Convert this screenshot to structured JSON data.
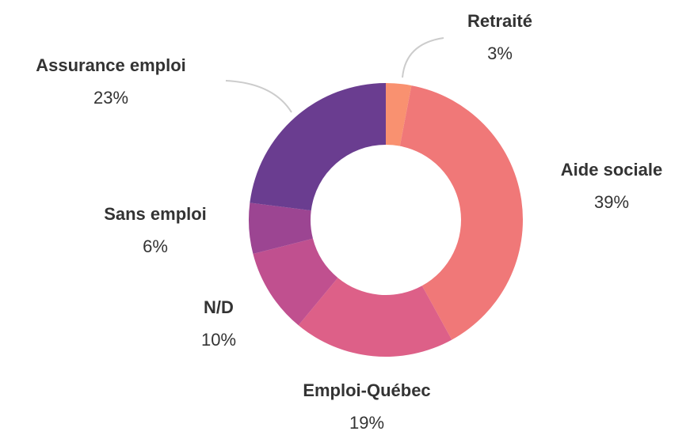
{
  "chart_data": {
    "type": "donut",
    "categories": [
      "Retraité",
      "Aide sociale",
      "Emploi-Québec",
      "N/D",
      "Sans emploi",
      "Assurance emploi"
    ],
    "values": [
      3,
      39,
      19,
      10,
      6,
      23
    ],
    "value_labels": [
      "3%",
      "39%",
      "19%",
      "10%",
      "6%",
      "23%"
    ],
    "colors": [
      "#f99170",
      "#f07878",
      "#dd6088",
      "#c0508f",
      "#9c4592",
      "#6a3d90"
    ]
  }
}
